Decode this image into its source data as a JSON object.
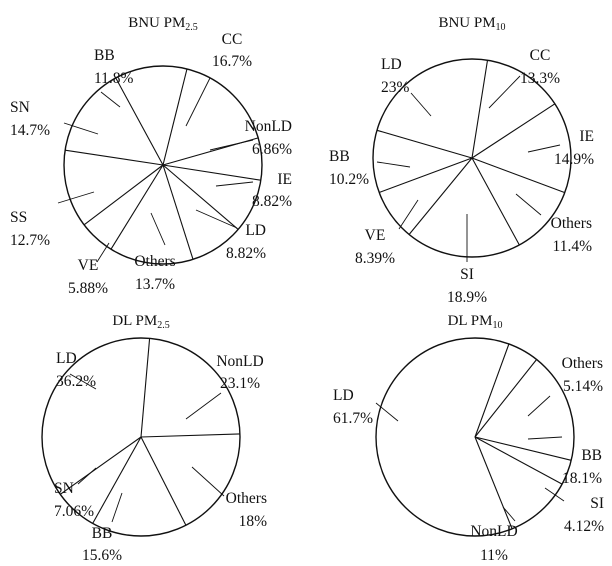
{
  "chart_data": [
    {
      "type": "pie",
      "title": {
        "main": "BNU PM",
        "sub": "2.5"
      },
      "slices": [
        {
          "name": "CC",
          "value": 16.7,
          "display": "16.7%"
        },
        {
          "name": "NonLD",
          "value": 6.86,
          "display": "6.86%"
        },
        {
          "name": "IE",
          "value": 8.82,
          "display": "8.82%"
        },
        {
          "name": "LD",
          "value": 8.82,
          "display": "8.82%"
        },
        {
          "name": "Others",
          "value": 13.7,
          "display": "13.7%"
        },
        {
          "name": "VE",
          "value": 5.88,
          "display": "5.88%"
        },
        {
          "name": "SS",
          "value": 12.7,
          "display": "12.7%"
        },
        {
          "name": "SN",
          "value": 14.7,
          "display": "14.7%"
        },
        {
          "name": "BB",
          "value": 11.8,
          "display": "11.8%"
        }
      ]
    },
    {
      "type": "pie",
      "title": {
        "main": "BNU PM",
        "sub": "10"
      },
      "slices": [
        {
          "name": "CC",
          "value": 13.3,
          "display": "13.3%"
        },
        {
          "name": "IE",
          "value": 14.9,
          "display": "14.9%"
        },
        {
          "name": "Others",
          "value": 11.4,
          "display": "11.4%"
        },
        {
          "name": "SI",
          "value": 18.9,
          "display": "18.9%"
        },
        {
          "name": "VE",
          "value": 8.39,
          "display": "8.39%"
        },
        {
          "name": "BB",
          "value": 10.2,
          "display": "10.2%"
        },
        {
          "name": "LD",
          "value": 23,
          "display": "23%"
        }
      ]
    },
    {
      "type": "pie",
      "title": {
        "main": "DL PM",
        "sub": "2.5"
      },
      "slices": [
        {
          "name": "NonLD",
          "value": 23.1,
          "display": "23.1%"
        },
        {
          "name": "Others",
          "value": 18,
          "display": "18%"
        },
        {
          "name": "BB",
          "value": 15.6,
          "display": "15.6%"
        },
        {
          "name": "SN",
          "value": 7.06,
          "display": "7.06%"
        },
        {
          "name": "LD",
          "value": 36.2,
          "display": "36.2%"
        }
      ]
    },
    {
      "type": "pie",
      "title": {
        "main": "DL PM",
        "sub": "10"
      },
      "slices": [
        {
          "name": "Others",
          "value": 5.14,
          "display": "5.14%"
        },
        {
          "name": "BB",
          "value": 18.1,
          "display": "18.1%"
        },
        {
          "name": "SI",
          "value": 4.12,
          "display": "4.12%"
        },
        {
          "name": "NonLD",
          "value": 11,
          "display": "11%"
        },
        {
          "name": "LD",
          "value": 61.7,
          "display": "61.7%"
        }
      ]
    }
  ]
}
